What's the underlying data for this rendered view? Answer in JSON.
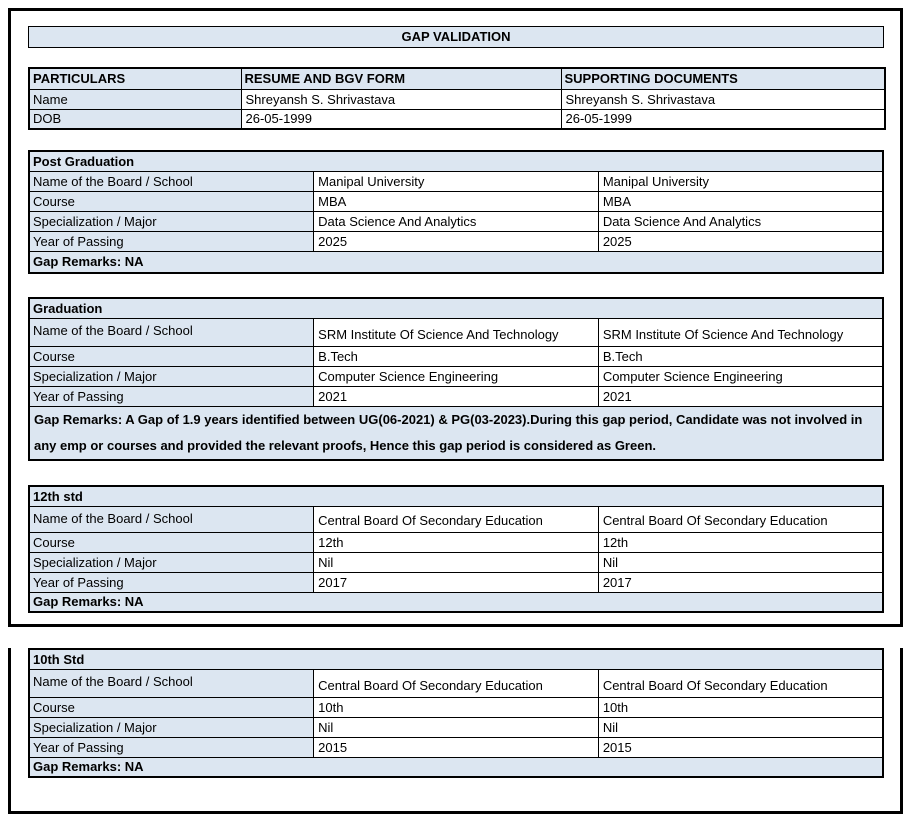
{
  "page": {
    "title": "GAP VALIDATION"
  },
  "colors": {
    "header_fill": "#dce6f1",
    "border": "#000000",
    "text": "#000000"
  },
  "particulars_table": {
    "headers": [
      "PARTICULARS",
      "RESUME AND BGV FORM",
      "SUPPORTING DOCUMENTS"
    ],
    "rows": [
      {
        "label": "Name",
        "resume": "Shreyansh S. Shrivastava",
        "supporting": "Shreyansh S. Shrivastava"
      },
      {
        "label": "DOB",
        "resume": "26-05-1999",
        "supporting": "26-05-1999"
      }
    ]
  },
  "sections": [
    {
      "title": "Post Graduation",
      "rows": [
        {
          "label": "Name of the Board / School",
          "resume": "Manipal University",
          "supporting": "Manipal University"
        },
        {
          "label": "Course",
          "resume": "MBA",
          "supporting": "MBA"
        },
        {
          "label": "Specialization / Major",
          "resume": "Data Science And Analytics",
          "supporting": "Data Science And Analytics"
        },
        {
          "label": "Year of Passing",
          "resume": "2025",
          "supporting": "2025"
        }
      ],
      "remark": "Gap Remarks: NA"
    },
    {
      "title": "Graduation",
      "rows": [
        {
          "label": "Name of the Board / School",
          "resume": "SRM Institute Of Science And Technology",
          "supporting": "SRM Institute Of Science And Technology"
        },
        {
          "label": "Course",
          "resume": "B.Tech",
          "supporting": "B.Tech"
        },
        {
          "label": "Specialization / Major",
          "resume": "Computer Science Engineering",
          "supporting": "Computer Science Engineering"
        },
        {
          "label": "Year of Passing",
          "resume": "2021",
          "supporting": "2021"
        }
      ],
      "remark": "Gap Remarks: A Gap of 1.9 years identified between UG(06-2021) & PG(03-2023).During this gap period, Candidate was not involved in any emp or courses and provided the relevant proofs, Hence this gap period is considered as Green."
    },
    {
      "title": "12th std",
      "rows": [
        {
          "label": "Name of the Board / School",
          "resume": "Central Board Of Secondary Education",
          "supporting": "Central Board Of Secondary Education"
        },
        {
          "label": "Course",
          "resume": "12th",
          "supporting": "12th"
        },
        {
          "label": "Specialization / Major",
          "resume": "Nil",
          "supporting": "Nil"
        },
        {
          "label": "Year of Passing",
          "resume": "2017",
          "supporting": "2017"
        }
      ],
      "remark": "Gap Remarks: NA"
    },
    {
      "title": "10th Std",
      "rows": [
        {
          "label": "Name of the Board / School",
          "resume": "Central Board Of Secondary Education",
          "supporting": "Central Board Of Secondary Education"
        },
        {
          "label": "Course",
          "resume": "10th",
          "supporting": "10th"
        },
        {
          "label": "Specialization / Major",
          "resume": "Nil",
          "supporting": "Nil"
        },
        {
          "label": "Year of Passing",
          "resume": "2015",
          "supporting": "2015"
        }
      ],
      "remark": "Gap Remarks: NA"
    }
  ]
}
